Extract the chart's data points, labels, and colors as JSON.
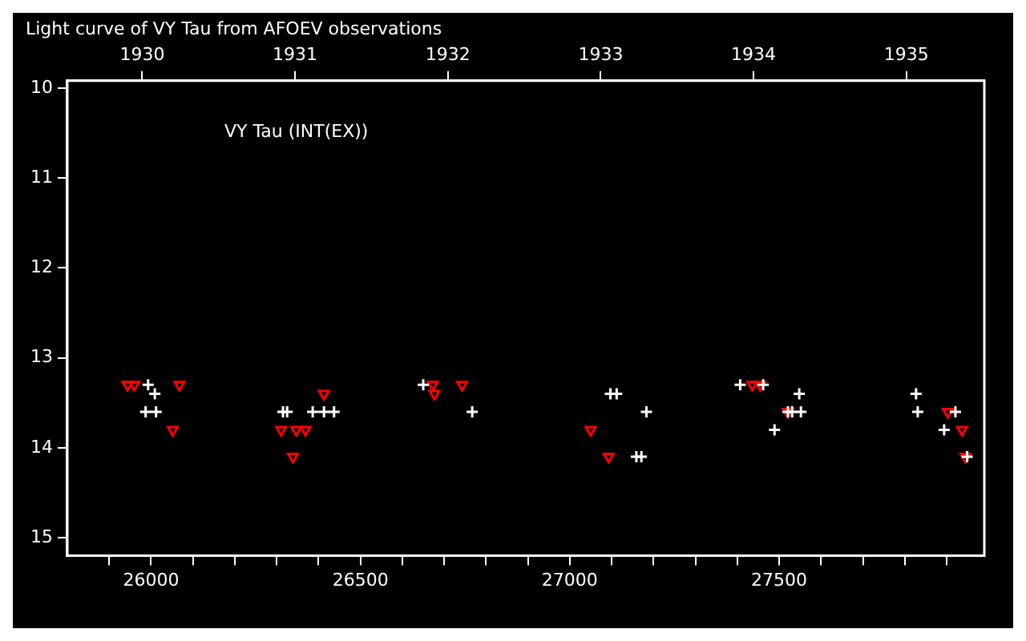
{
  "chart_data": {
    "type": "scatter",
    "title": "Light curve of VY Tau from AFOEV observations",
    "annotations": [
      "VY Tau (INT(EX))"
    ],
    "series": [
      {
        "color": "#ffffff",
        "marker": "cross",
        "x": [
          25993,
          26009,
          25987,
          26012,
          26315,
          26325,
          26386,
          26413,
          26437,
          26650,
          26767,
          27097,
          27112,
          27183,
          27159,
          27171,
          27407,
          27462,
          27548,
          27521,
          27531,
          27552,
          27489,
          27827,
          27831,
          27921,
          27894,
          27949
        ],
        "values": [
          13.3,
          13.4,
          13.6,
          13.6,
          13.6,
          13.6,
          13.6,
          13.6,
          13.6,
          13.3,
          13.6,
          13.4,
          13.4,
          13.6,
          14.1,
          14.1,
          13.3,
          13.3,
          13.4,
          13.6,
          13.6,
          13.6,
          13.8,
          13.4,
          13.6,
          13.6,
          13.8,
          14.1
        ]
      },
      {
        "color": "#ff0000",
        "marker": "triangle",
        "x": [
          25944,
          25960,
          26052,
          26068,
          26311,
          26347,
          26369,
          26339,
          26413,
          26673,
          26677,
          26743,
          27050,
          27093,
          27436,
          27455,
          27521,
          27903,
          27937,
          27945
        ],
        "values": [
          13.3,
          13.3,
          13.8,
          13.3,
          13.8,
          13.8,
          13.8,
          14.1,
          13.4,
          13.3,
          13.4,
          13.3,
          13.8,
          14.1,
          13.3,
          13.3,
          13.6,
          13.6,
          13.8,
          14.1
        ]
      }
    ],
    "xlim": [
      25800,
      27990
    ],
    "xticks": [
      {
        "value": 25900,
        "label": null
      },
      26000,
      {
        "value": 26100,
        "label": null
      },
      {
        "value": 26200,
        "label": null
      },
      {
        "value": 26300,
        "label": null
      },
      {
        "value": 26400,
        "label": null
      },
      26500,
      {
        "value": 26600,
        "label": null
      },
      {
        "value": 26700,
        "label": null
      },
      {
        "value": 26800,
        "label": null
      },
      {
        "value": 26900,
        "label": null
      },
      27000,
      {
        "value": 27100,
        "label": null
      },
      {
        "value": 27200,
        "label": null
      },
      {
        "value": 27300,
        "label": null
      },
      {
        "value": 27400,
        "label": null
      },
      27500,
      {
        "value": 27600,
        "label": null
      },
      {
        "value": 27700,
        "label": null
      },
      {
        "value": 27800,
        "label": null
      },
      {
        "value": 27900,
        "label": null
      }
    ],
    "x2lim": [
      1929.51,
      1935.51
    ],
    "x2ticks": [
      1930,
      1931,
      1932,
      1933,
      1934,
      1935
    ],
    "ylim": [
      15.2,
      9.92
    ],
    "yticks": [
      10,
      11,
      12,
      13,
      14,
      15
    ],
    "grid": false,
    "legend": false
  }
}
